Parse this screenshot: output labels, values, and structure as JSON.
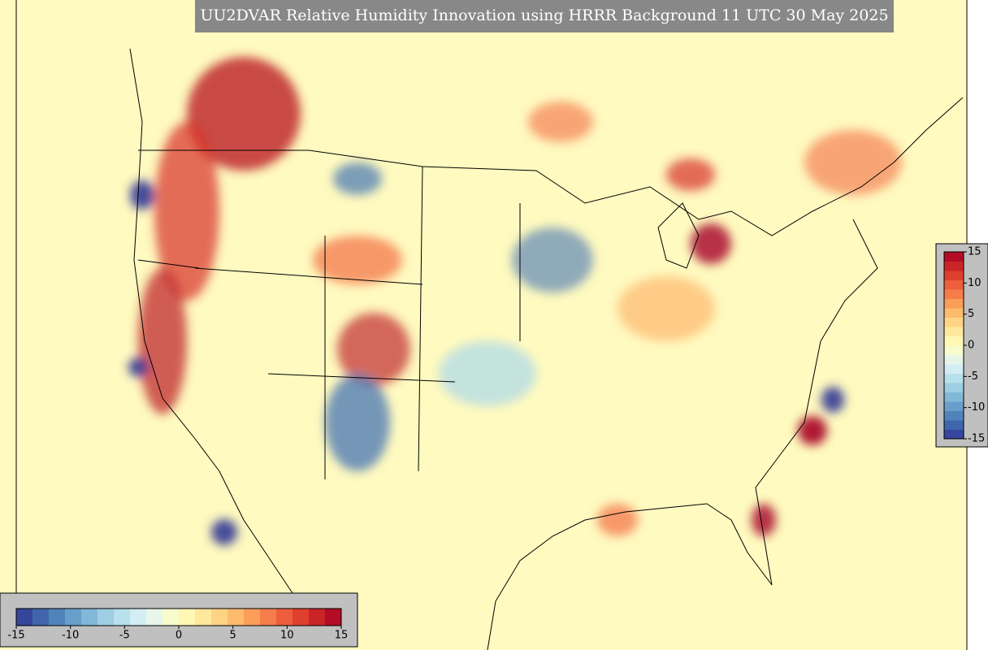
{
  "title": "UU2DVAR Relative Humidity Innovation using HRRR Background 11 UTC 30 May 2025",
  "colorbar_bottom": {
    "lim": [
      -15,
      15
    ],
    "ticks": [
      -15,
      -10,
      -5,
      0,
      5,
      10,
      15
    ]
  },
  "colorbar_right": {
    "lim": [
      -15,
      15
    ],
    "ticks": [
      -15,
      -10,
      -5,
      0,
      5,
      10,
      15
    ]
  },
  "colors": [
    "#313695",
    "#4575b4",
    "#74add1",
    "#abd9e9",
    "#e0f3f8",
    "#ffffbf",
    "#fee090",
    "#fdae61",
    "#f46d43",
    "#d73027",
    "#a50026"
  ]
}
